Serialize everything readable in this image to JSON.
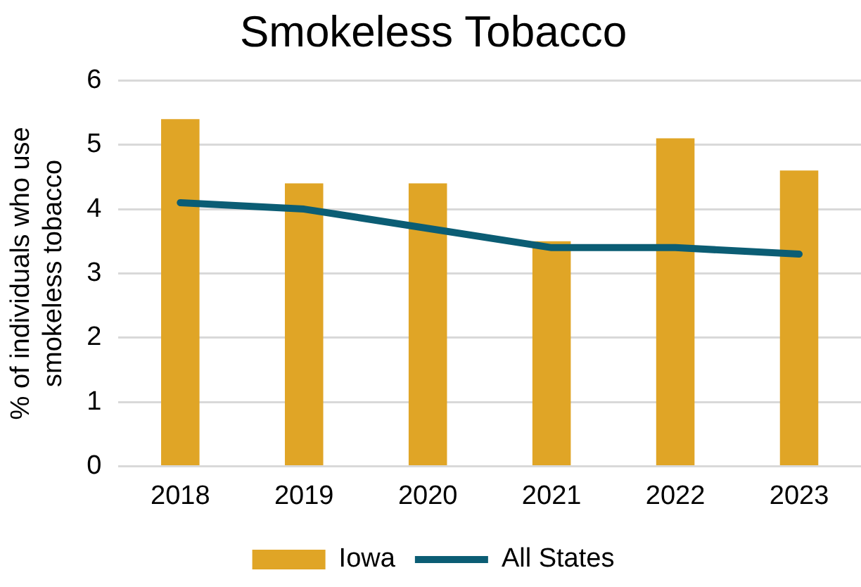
{
  "chart_data": {
    "type": "bar",
    "title": "Smokeless Tobacco",
    "ylabel": "% of individuals who use smokeless tobacco",
    "categories": [
      "2018",
      "2019",
      "2020",
      "2021",
      "2022",
      "2023"
    ],
    "series": [
      {
        "name": "Iowa",
        "color": "#e0a526",
        "values": [
          5.4,
          4.4,
          4.4,
          3.5,
          5.1,
          4.6
        ]
      },
      {
        "name": "All States",
        "type": "line",
        "color": "#0b5d74",
        "values": [
          4.1,
          4.0,
          3.7,
          3.4,
          3.4,
          3.3
        ]
      }
    ],
    "ylim": [
      0,
      6
    ],
    "yticks": [
      0,
      1,
      2,
      3,
      4,
      5,
      6
    ],
    "grid": "y",
    "legend": "bottom",
    "marker": "none"
  }
}
